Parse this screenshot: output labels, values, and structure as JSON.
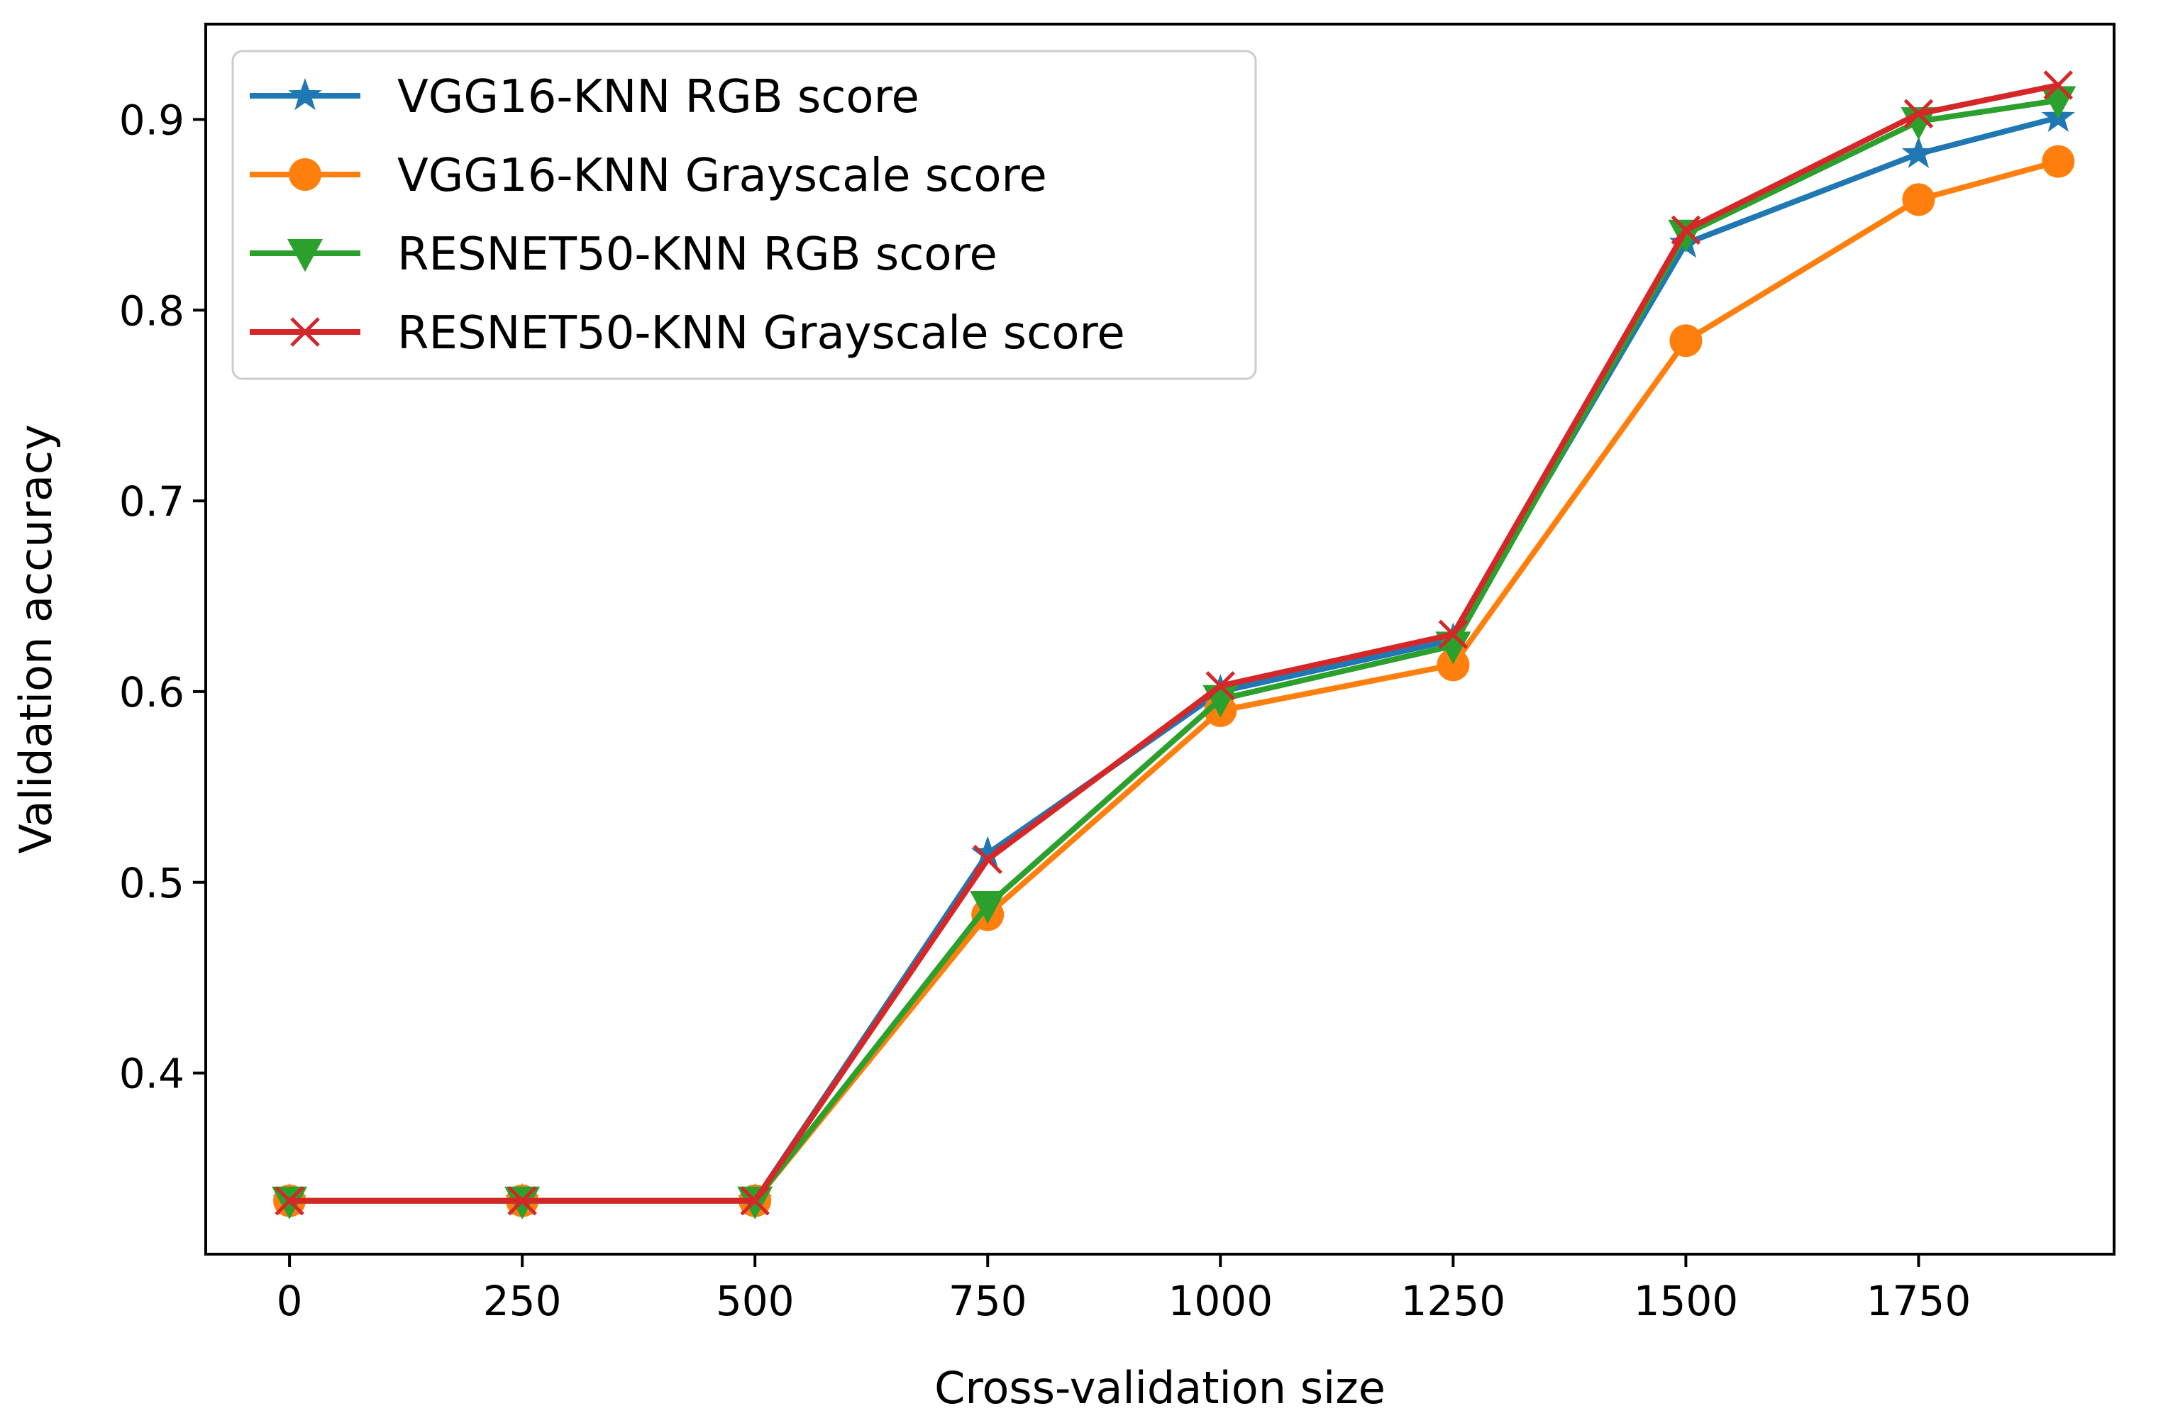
{
  "chart_data": {
    "type": "line",
    "title": "",
    "xlabel": "Cross-validation size",
    "ylabel": "Validation accuracy",
    "xlim": [
      -90,
      1960
    ],
    "ylim": [
      0.305,
      0.95
    ],
    "xticks": [
      0,
      250,
      500,
      750,
      1000,
      1250,
      1500,
      1750
    ],
    "xtick_labels": [
      "0",
      "250",
      "500",
      "750",
      "1000",
      "1250",
      "1500",
      "1750"
    ],
    "yticks": [
      0.4,
      0.5,
      0.6,
      0.7,
      0.8,
      0.9
    ],
    "ytick_labels": [
      "0.4",
      "0.5",
      "0.6",
      "0.7",
      "0.8",
      "0.9"
    ],
    "grid": false,
    "legend_position": "top-left",
    "x": [
      0,
      250,
      500,
      750,
      1000,
      1250,
      1500,
      1750,
      1900
    ],
    "series": [
      {
        "name": "VGG16-KNN RGB score",
        "color": "#1f77b4",
        "marker": "star",
        "values": [
          0.333,
          0.333,
          0.333,
          0.515,
          0.6,
          0.627,
          0.835,
          0.882,
          0.901
        ]
      },
      {
        "name": "VGG16-KNN Grayscale score",
        "color": "#ff7f0e",
        "marker": "circle",
        "values": [
          0.333,
          0.333,
          0.333,
          0.483,
          0.59,
          0.614,
          0.784,
          0.858,
          0.878
        ]
      },
      {
        "name": "RESNET50-KNN RGB score",
        "color": "#2ca02c",
        "marker": "triangle-down",
        "values": [
          0.333,
          0.333,
          0.333,
          0.488,
          0.596,
          0.624,
          0.84,
          0.899,
          0.91
        ]
      },
      {
        "name": "RESNET50-KNN Grayscale score",
        "color": "#d62728",
        "marker": "x",
        "values": [
          0.333,
          0.333,
          0.333,
          0.512,
          0.603,
          0.63,
          0.842,
          0.903,
          0.918
        ]
      }
    ]
  }
}
